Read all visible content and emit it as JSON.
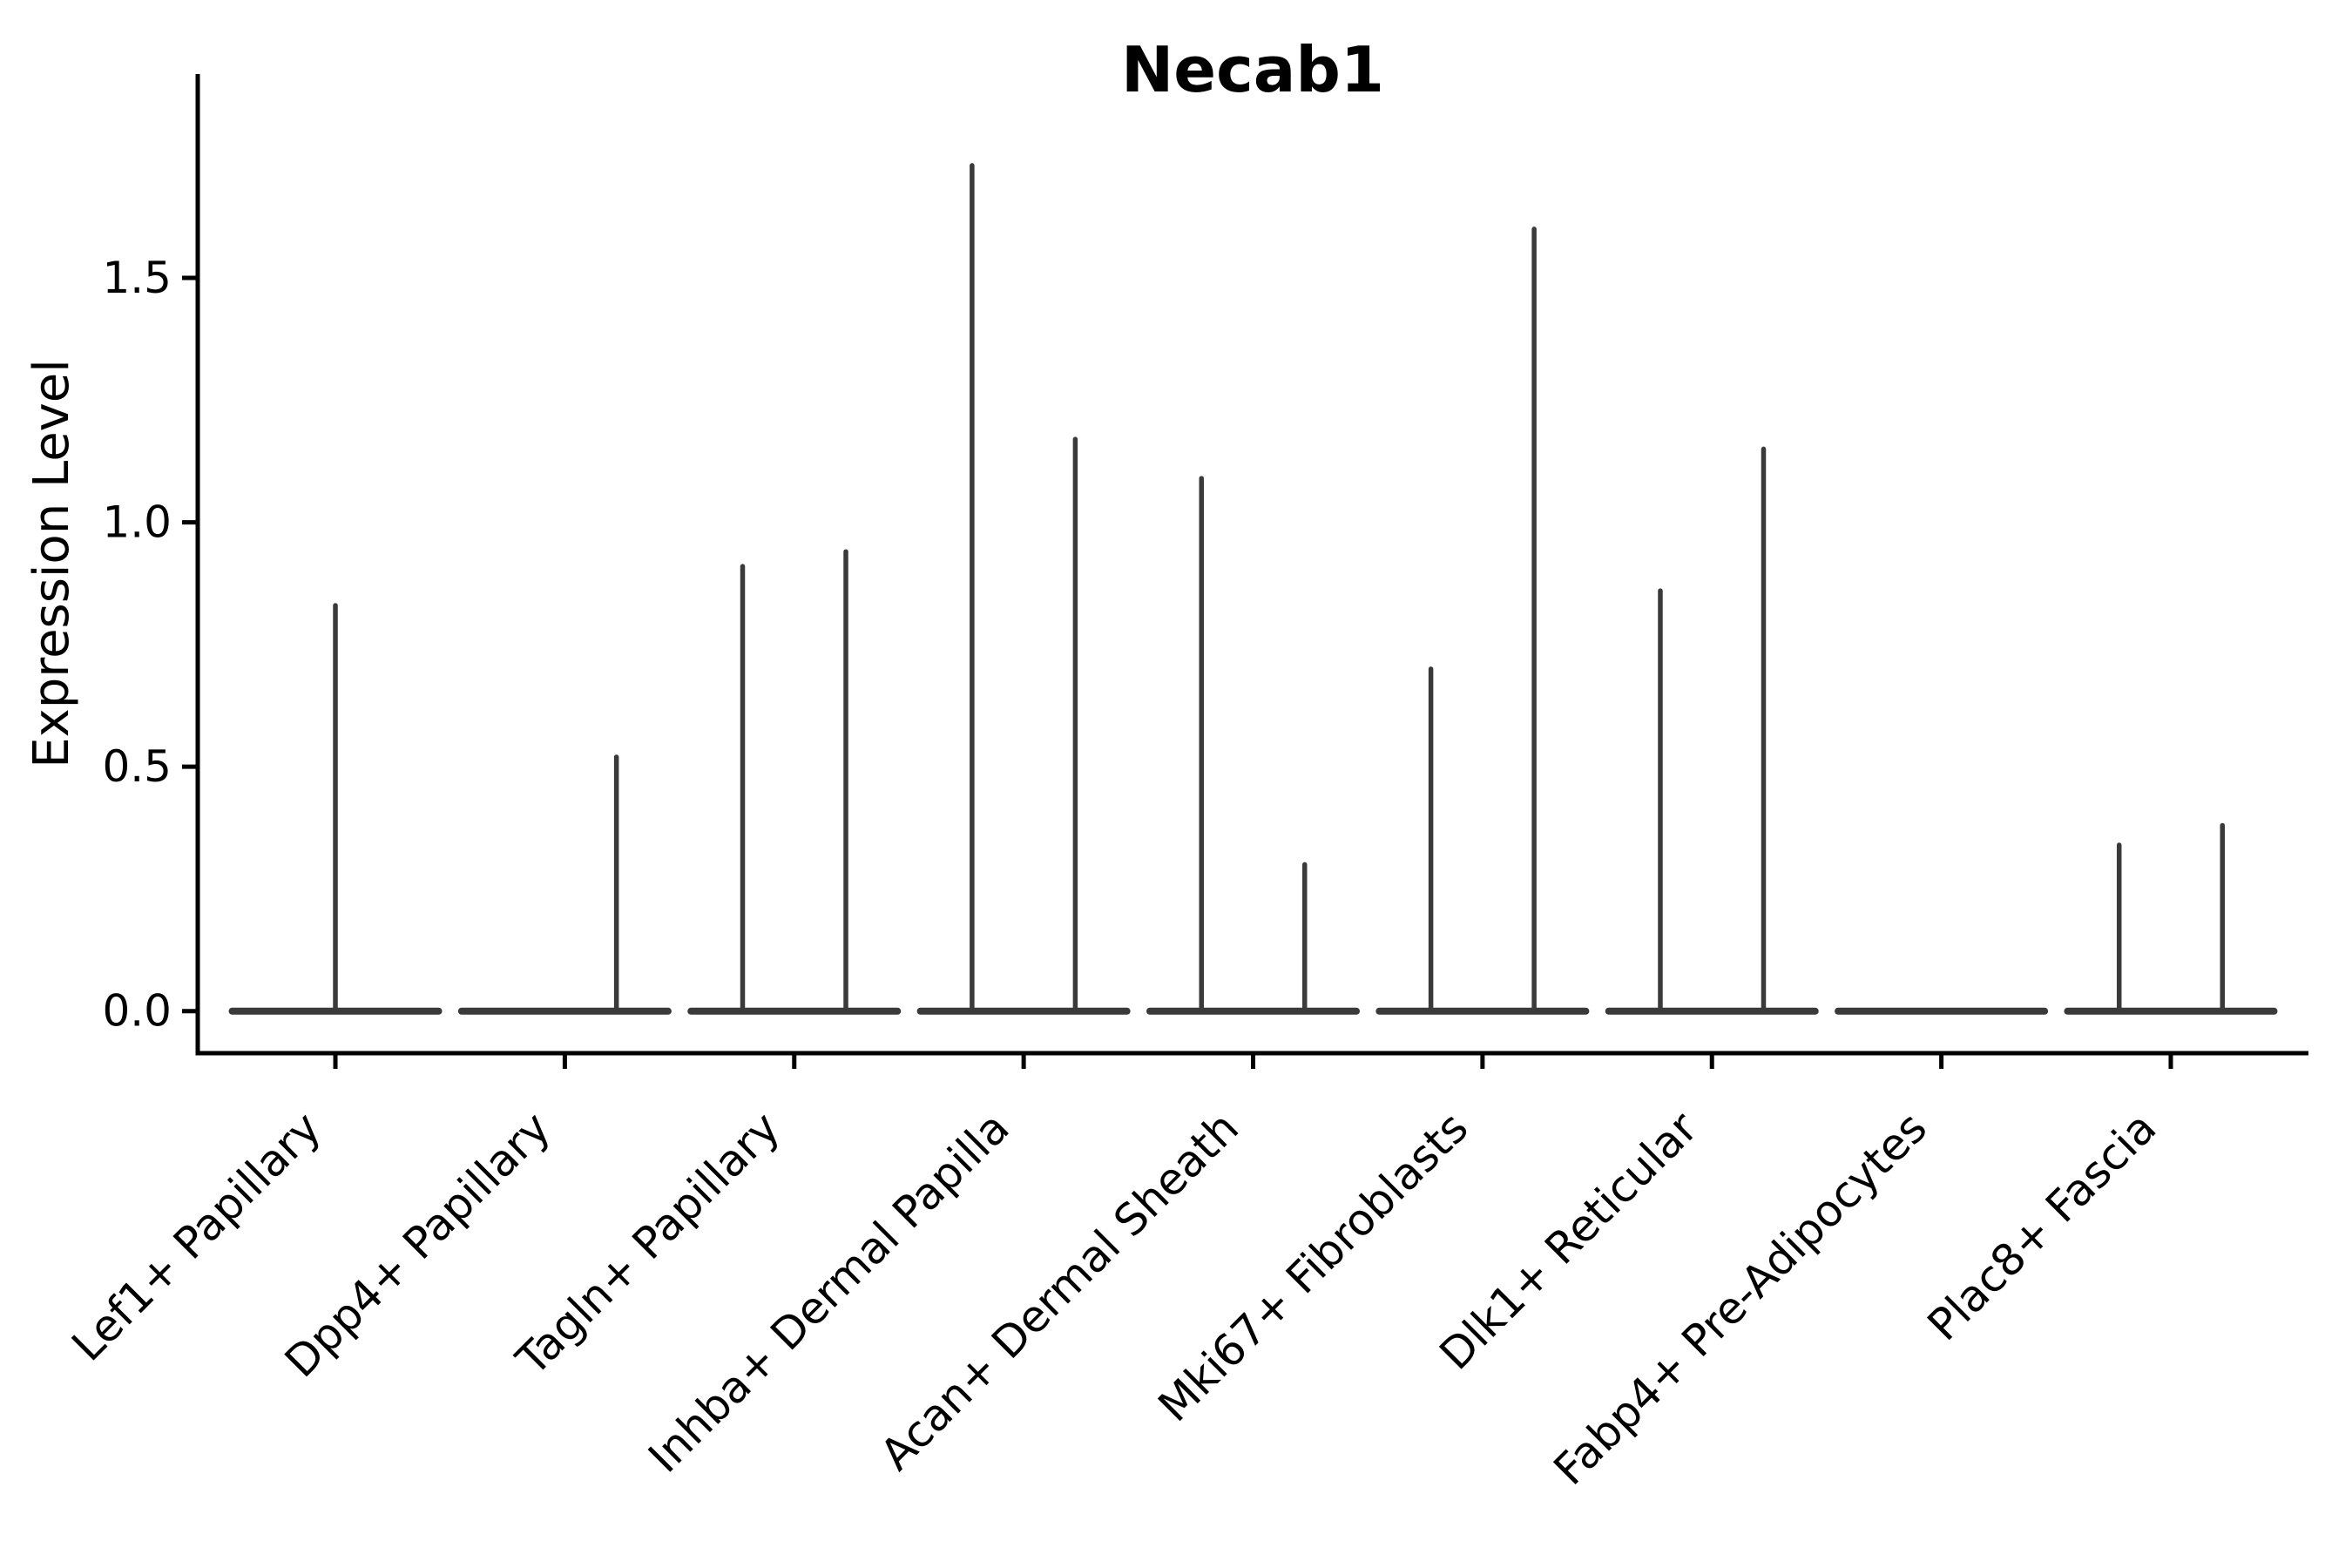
{
  "chart_data": {
    "type": "violin",
    "title": "Necab1",
    "xlabel": "",
    "ylabel": "Expression Level",
    "yticks": [
      0.0,
      0.5,
      1.0,
      1.5
    ],
    "ytick_labels": [
      "0.0",
      "0.5",
      "1.0",
      "1.5"
    ],
    "ylim": [
      -0.086,
      1.917
    ],
    "grid": false,
    "legend": "none",
    "categories": [
      "Lef1+ Papillary",
      "Dpp4+ Papillary",
      "Tagln+ Papillary",
      "Inhba+ Dermal Papilla",
      "Acan+ Dermal Sheath",
      "Mki67+ Fibroblasts",
      "Dlk1+ Reticular",
      "Fabp4+ Pre-Adipocytes",
      "Plac8+ Fascia"
    ],
    "violin_width": 0.9,
    "baseline_value": 0.0,
    "violins": [
      {
        "category": "Lef1+ Papillary",
        "spikes": [
          {
            "offset": 0.0,
            "max": 0.83
          }
        ]
      },
      {
        "category": "Dpp4+ Papillary",
        "spikes": [
          {
            "offset": 0.225,
            "max": 0.52
          }
        ]
      },
      {
        "category": "Tagln+ Papillary",
        "spikes": [
          {
            "offset": -0.225,
            "max": 0.91
          },
          {
            "offset": 0.225,
            "max": 0.94
          }
        ]
      },
      {
        "category": "Inhba+ Dermal Papilla",
        "spikes": [
          {
            "offset": -0.225,
            "max": 1.73
          },
          {
            "offset": 0.225,
            "max": 1.17
          }
        ]
      },
      {
        "category": "Acan+ Dermal Sheath",
        "spikes": [
          {
            "offset": -0.225,
            "max": 1.09
          },
          {
            "offset": 0.225,
            "max": 0.3
          }
        ]
      },
      {
        "category": "Mki67+ Fibroblasts",
        "spikes": [
          {
            "offset": -0.225,
            "max": 0.7
          },
          {
            "offset": 0.225,
            "max": 1.6
          }
        ]
      },
      {
        "category": "Dlk1+ Reticular",
        "spikes": [
          {
            "offset": -0.225,
            "max": 0.86
          },
          {
            "offset": 0.225,
            "max": 1.15
          }
        ]
      },
      {
        "category": "Fabp4+ Pre-Adipocytes",
        "spikes": []
      },
      {
        "category": "Plac8+ Fascia",
        "spikes": [
          {
            "offset": -0.225,
            "max": 0.34
          },
          {
            "offset": 0.225,
            "max": 0.38
          }
        ]
      }
    ],
    "colors": {
      "violin": "#3a3a3a",
      "axis": "#000000",
      "text": "#000000",
      "background": "#ffffff"
    }
  }
}
